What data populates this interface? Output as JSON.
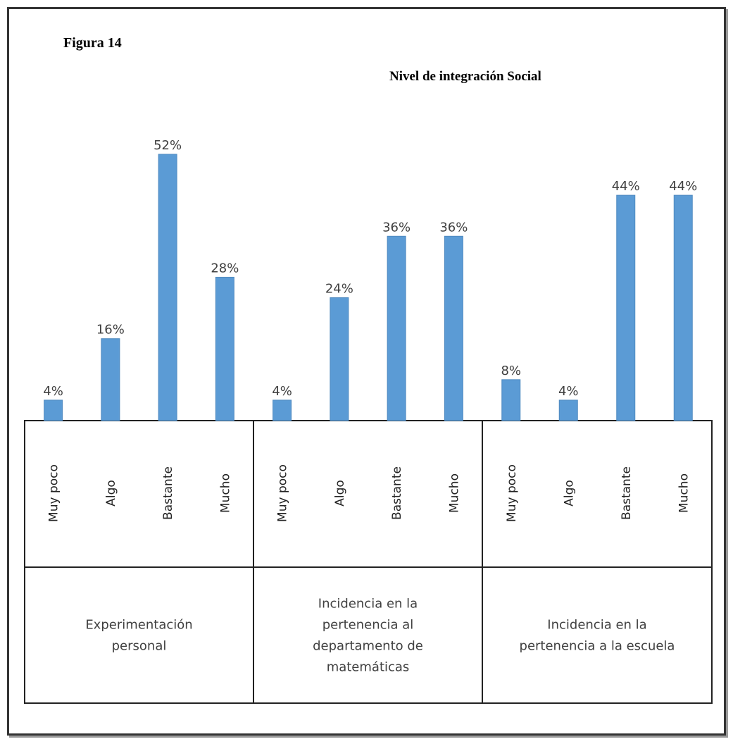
{
  "figure_label": "Figura 14",
  "chart_data": {
    "type": "bar",
    "title": "Nivel de integración Social",
    "xlabel": "",
    "ylabel": "",
    "ylim": [
      0,
      60
    ],
    "bar_color": "#5b9bd5",
    "groups": [
      {
        "label": "Experimentación personal",
        "categories": [
          "Muy poco",
          "Algo",
          "Bastante",
          "Mucho"
        ],
        "values": [
          4,
          16,
          52,
          28
        ],
        "value_labels": [
          "4%",
          "16%",
          "52%",
          "28%"
        ]
      },
      {
        "label": "Incidencia en la pertenencia al departamento de matemáticas",
        "categories": [
          "Muy poco",
          "Algo",
          "Bastante",
          "Mucho"
        ],
        "values": [
          4,
          24,
          36,
          36
        ],
        "value_labels": [
          "4%",
          "24%",
          "36%",
          "36%"
        ]
      },
      {
        "label": "Incidencia en la pertenencia a la escuela",
        "categories": [
          "Muy poco",
          "Algo",
          "Bastante",
          "Mucho"
        ],
        "values": [
          8,
          4,
          44,
          44
        ],
        "value_labels": [
          "8%",
          "4%",
          "44%",
          "44%"
        ]
      }
    ]
  }
}
